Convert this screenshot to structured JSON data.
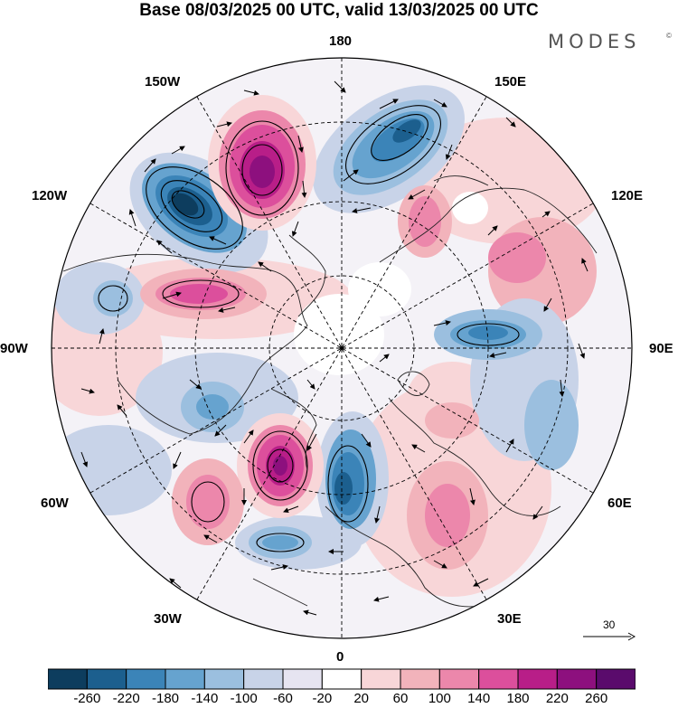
{
  "title": "Base 08/03/2025 00 UTC, valid 13/03/2025 00 UTC",
  "brand": {
    "name": "MODES",
    "mark": "©"
  },
  "longitude_labels": {
    "top": "180",
    "bottom": "0",
    "left": "90W",
    "right": "90E",
    "upper_left": "150W",
    "upper_right": "150E",
    "mid_upper_left": "120W",
    "mid_upper_right": "120E",
    "mid_lower_left": "60W",
    "mid_lower_right": "60E",
    "lower_left": "30W",
    "lower_right": "30E"
  },
  "reference_vector": {
    "label": "30"
  },
  "colorbar": {
    "colors": [
      "#0d3d5e",
      "#1c5f8e",
      "#3b84b8",
      "#66a3cf",
      "#9bbfdf",
      "#c8d3e8",
      "#e6e4f1",
      "#ffffff",
      "#f8d6d8",
      "#f2b3bb",
      "#ec87ab",
      "#dc4f9c",
      "#b81e88",
      "#8d107e",
      "#5a0b6c"
    ],
    "labels": [
      "-260",
      "-220",
      "-180",
      "-140",
      "-100",
      "-60",
      "-20",
      "20",
      "60",
      "100",
      "140",
      "180",
      "220",
      "260"
    ]
  }
}
